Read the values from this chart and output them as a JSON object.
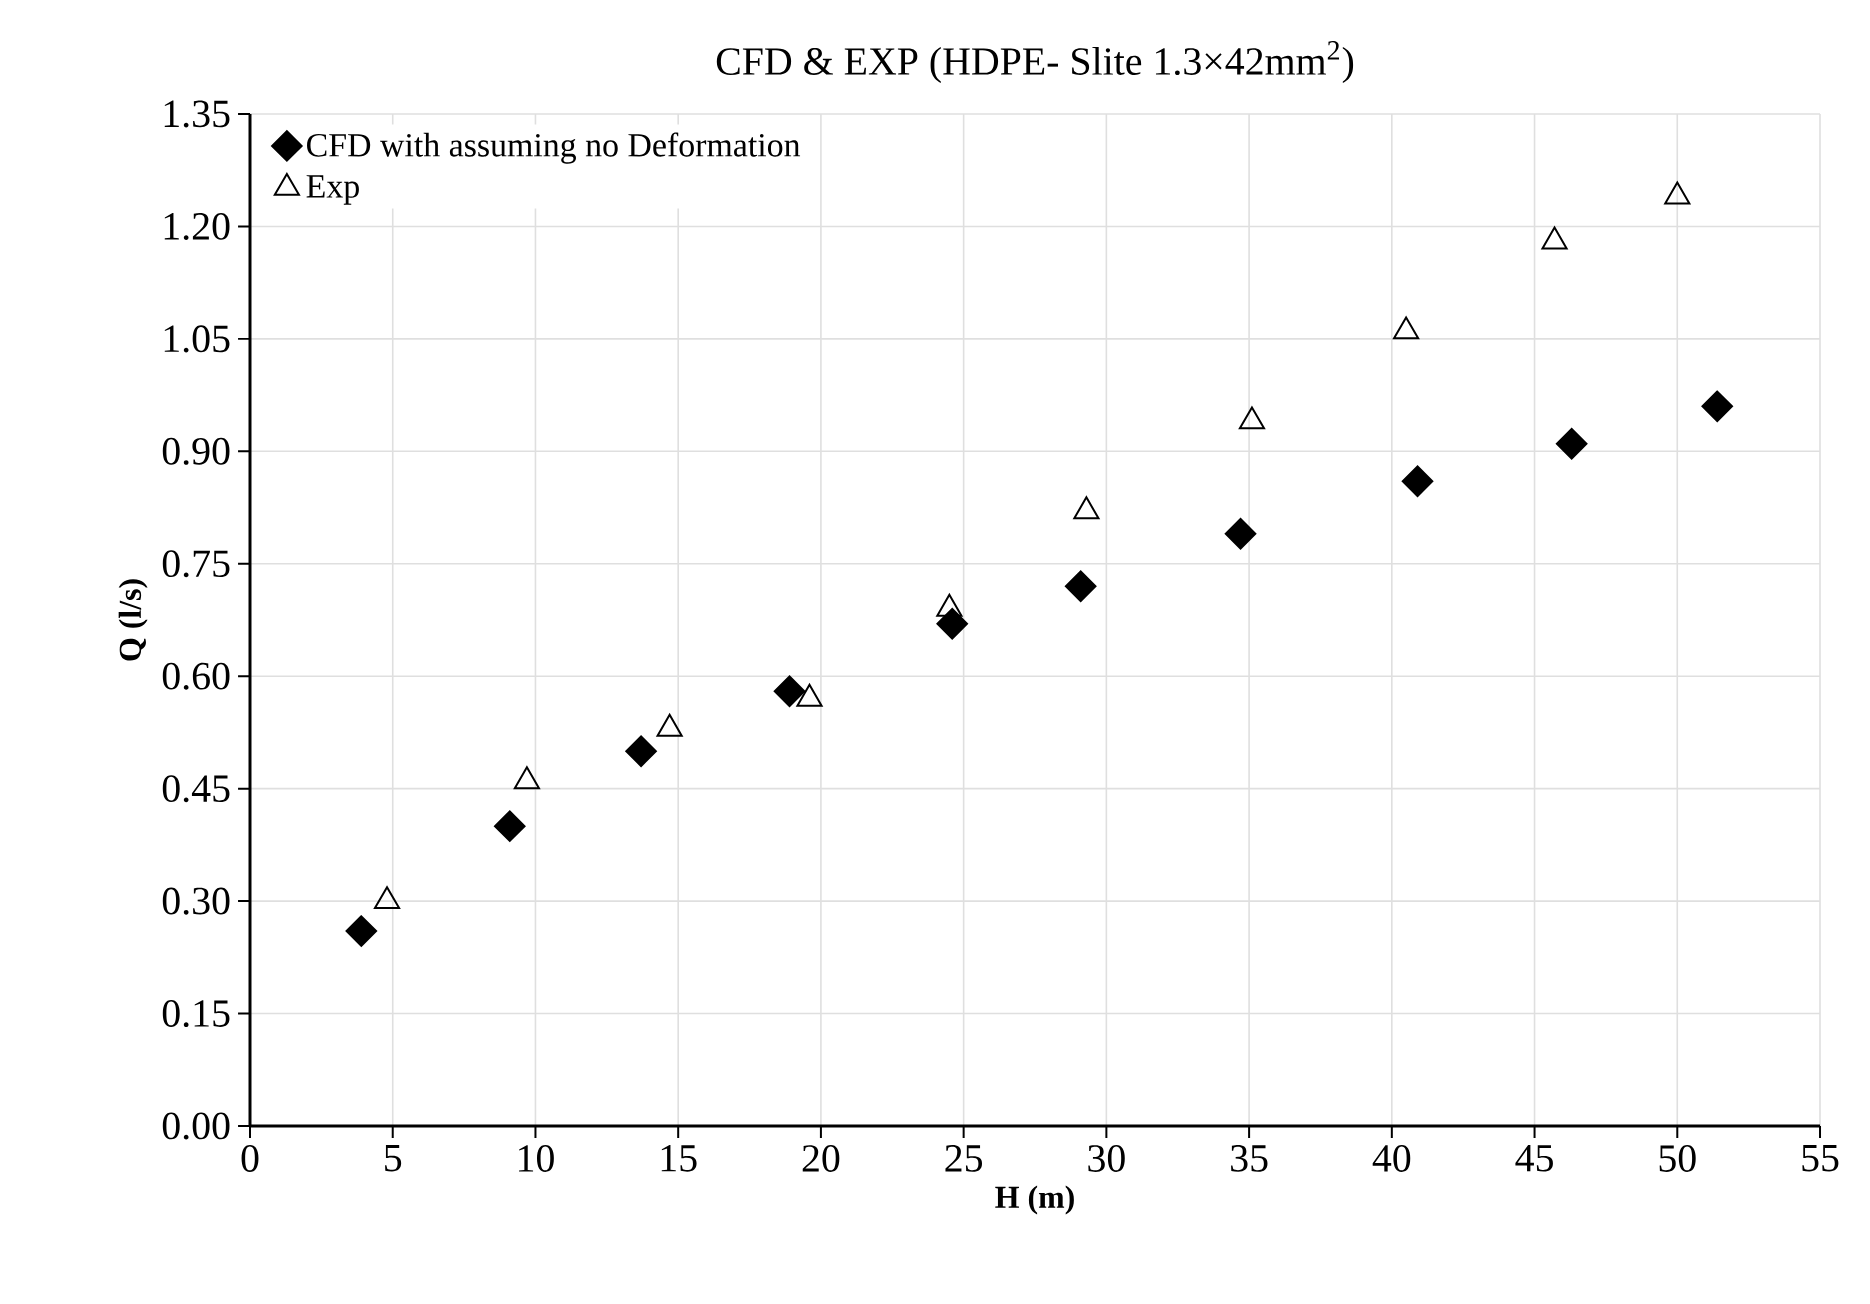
{
  "chart_data": {
    "type": "scatter",
    "title": "CFD & EXP (HDPE- Slite 1.3×42mm$^{2}$)",
    "xlabel": "H (m)",
    "ylabel": "Q (l/s)",
    "xlim": [
      0,
      55
    ],
    "xticks": [
      0,
      5,
      10,
      15,
      20,
      25,
      30,
      35,
      40,
      45,
      50,
      55
    ],
    "ylim": [
      0,
      1.35
    ],
    "yticks": [
      {
        "value": 0,
        "label": "0.00"
      },
      {
        "value": 0.15,
        "label": "0.15"
      },
      {
        "value": 0.3,
        "label": "0.30"
      },
      {
        "value": 0.45,
        "label": "0.45"
      },
      {
        "value": 0.6,
        "label": "0.60"
      },
      {
        "value": 0.75,
        "label": "0.75"
      },
      {
        "value": 0.9,
        "label": "0.90"
      },
      {
        "value": 1.05,
        "label": "1.05"
      },
      {
        "value": 1.2,
        "label": "1.20"
      },
      {
        "value": 1.35,
        "label": "1.35"
      }
    ],
    "grid": true,
    "legend": "top left",
    "series": [
      {
        "name": "CFD with assuming no Deformation",
        "color": "#000000",
        "marker": "diamond",
        "x": [
          3.9,
          9.1,
          13.7,
          18.9,
          24.6,
          29.1,
          34.7,
          40.9,
          46.3,
          51.4
        ],
        "values": [
          0.26,
          0.4,
          0.5,
          0.58,
          0.67,
          0.72,
          0.79,
          0.86,
          0.91,
          0.96
        ]
      },
      {
        "name": "Exp",
        "color": "#000000",
        "marker": "triangle",
        "x": [
          4.8,
          9.7,
          14.7,
          19.6,
          24.5,
          29.3,
          35.1,
          40.5,
          45.7,
          50.0
        ],
        "values": [
          0.3,
          0.46,
          0.53,
          0.57,
          0.69,
          0.82,
          0.94,
          1.06,
          1.18,
          1.24
        ]
      }
    ]
  }
}
